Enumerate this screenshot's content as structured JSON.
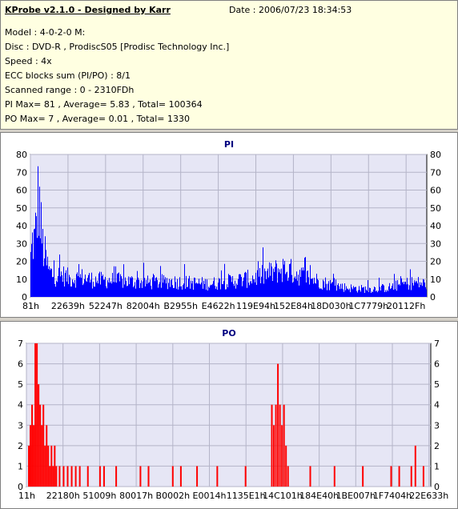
{
  "header": {
    "app_title": "KProbe v2.1.0 - Designed by Karr",
    "date": "Date : 2006/07/23 18:34:53"
  },
  "info_lines": [
    "Model : 4-0-2-0 M:",
    "Disc : DVD-R , ProdiscS05   [Prodisc Technology Inc.]",
    "Speed : 4x",
    "ECC blocks sum (PI/PO) : 8/1",
    "Scanned range : 0 - 2310FDh",
    "PI Max= 81 , Average= 5.83 , Total= 100364",
    "PO Max= 7 , Average= 0.01 , Total= 1330"
  ],
  "colors": {
    "pi_series": "#0000ff",
    "po_series": "#ff0000",
    "plot_bg": "#e6e6f5",
    "grid": "#b4b4c8",
    "title": "#000080"
  },
  "chart_data": [
    {
      "type": "bar",
      "title": "PI",
      "xlabel": "",
      "ylabel": "",
      "ylim": [
        0,
        80
      ],
      "yticks": [
        0,
        10,
        20,
        30,
        40,
        50,
        60,
        70,
        80
      ],
      "xticks": [
        "81h",
        "22639h",
        "52247h",
        "82004h",
        "B2955h",
        "E4622h",
        "119E94h",
        "152E84h",
        "18D030h",
        "1C7779h",
        "20112Fh"
      ],
      "xrange": [
        0,
        2297853
      ],
      "grid": true,
      "envelope": [
        [
          0,
          30
        ],
        [
          0.005,
          45
        ],
        [
          0.01,
          42
        ],
        [
          0.02,
          80
        ],
        [
          0.025,
          55
        ],
        [
          0.03,
          40
        ],
        [
          0.045,
          20
        ],
        [
          0.06,
          16
        ],
        [
          0.08,
          17
        ],
        [
          0.1,
          14
        ],
        [
          0.13,
          15
        ],
        [
          0.16,
          13
        ],
        [
          0.2,
          13
        ],
        [
          0.25,
          12
        ],
        [
          0.3,
          11
        ],
        [
          0.35,
          12
        ],
        [
          0.4,
          11
        ],
        [
          0.45,
          10
        ],
        [
          0.5,
          12
        ],
        [
          0.55,
          14
        ],
        [
          0.58,
          16
        ],
        [
          0.62,
          20
        ],
        [
          0.64,
          22
        ],
        [
          0.67,
          18
        ],
        [
          0.7,
          15
        ],
        [
          0.75,
          10
        ],
        [
          0.8,
          7
        ],
        [
          0.85,
          6
        ],
        [
          0.9,
          7
        ],
        [
          0.94,
          10
        ],
        [
          0.97,
          11
        ],
        [
          1.0,
          10
        ]
      ]
    },
    {
      "type": "bar",
      "title": "PO",
      "xlabel": "",
      "ylabel": "",
      "ylim": [
        0,
        7
      ],
      "yticks": [
        0,
        1,
        2,
        3,
        4,
        5,
        6,
        7
      ],
      "xticks": [
        "11h",
        "22180h",
        "51009h",
        "80017h",
        "B0002h",
        "E0014h",
        "1135E1h",
        "14C101h",
        "184E40h",
        "1BE007h",
        "1F7404h",
        "22E633h"
      ],
      "xrange": [
        0,
        2287156
      ],
      "grid": true,
      "spikes": [
        [
          0.004,
          2
        ],
        [
          0.008,
          3
        ],
        [
          0.012,
          4
        ],
        [
          0.016,
          3
        ],
        [
          0.02,
          7
        ],
        [
          0.024,
          7
        ],
        [
          0.028,
          5
        ],
        [
          0.032,
          4
        ],
        [
          0.036,
          3
        ],
        [
          0.04,
          4
        ],
        [
          0.044,
          2
        ],
        [
          0.048,
          3
        ],
        [
          0.052,
          2
        ],
        [
          0.056,
          1
        ],
        [
          0.06,
          2
        ],
        [
          0.064,
          1
        ],
        [
          0.068,
          2
        ],
        [
          0.072,
          1
        ],
        [
          0.08,
          1
        ],
        [
          0.09,
          1
        ],
        [
          0.1,
          1
        ],
        [
          0.11,
          1
        ],
        [
          0.12,
          1
        ],
        [
          0.13,
          1
        ],
        [
          0.15,
          1
        ],
        [
          0.18,
          1
        ],
        [
          0.19,
          1
        ],
        [
          0.22,
          1
        ],
        [
          0.28,
          1
        ],
        [
          0.3,
          1
        ],
        [
          0.36,
          1
        ],
        [
          0.38,
          1
        ],
        [
          0.42,
          1
        ],
        [
          0.47,
          1
        ],
        [
          0.54,
          1
        ],
        [
          0.605,
          4
        ],
        [
          0.61,
          3
        ],
        [
          0.615,
          4
        ],
        [
          0.62,
          6
        ],
        [
          0.625,
          4
        ],
        [
          0.63,
          3
        ],
        [
          0.635,
          4
        ],
        [
          0.64,
          2
        ],
        [
          0.645,
          1
        ],
        [
          0.7,
          1
        ],
        [
          0.76,
          1
        ],
        [
          0.83,
          1
        ],
        [
          0.9,
          1
        ],
        [
          0.92,
          1
        ],
        [
          0.95,
          1
        ],
        [
          0.96,
          2
        ],
        [
          0.98,
          1
        ]
      ]
    }
  ]
}
